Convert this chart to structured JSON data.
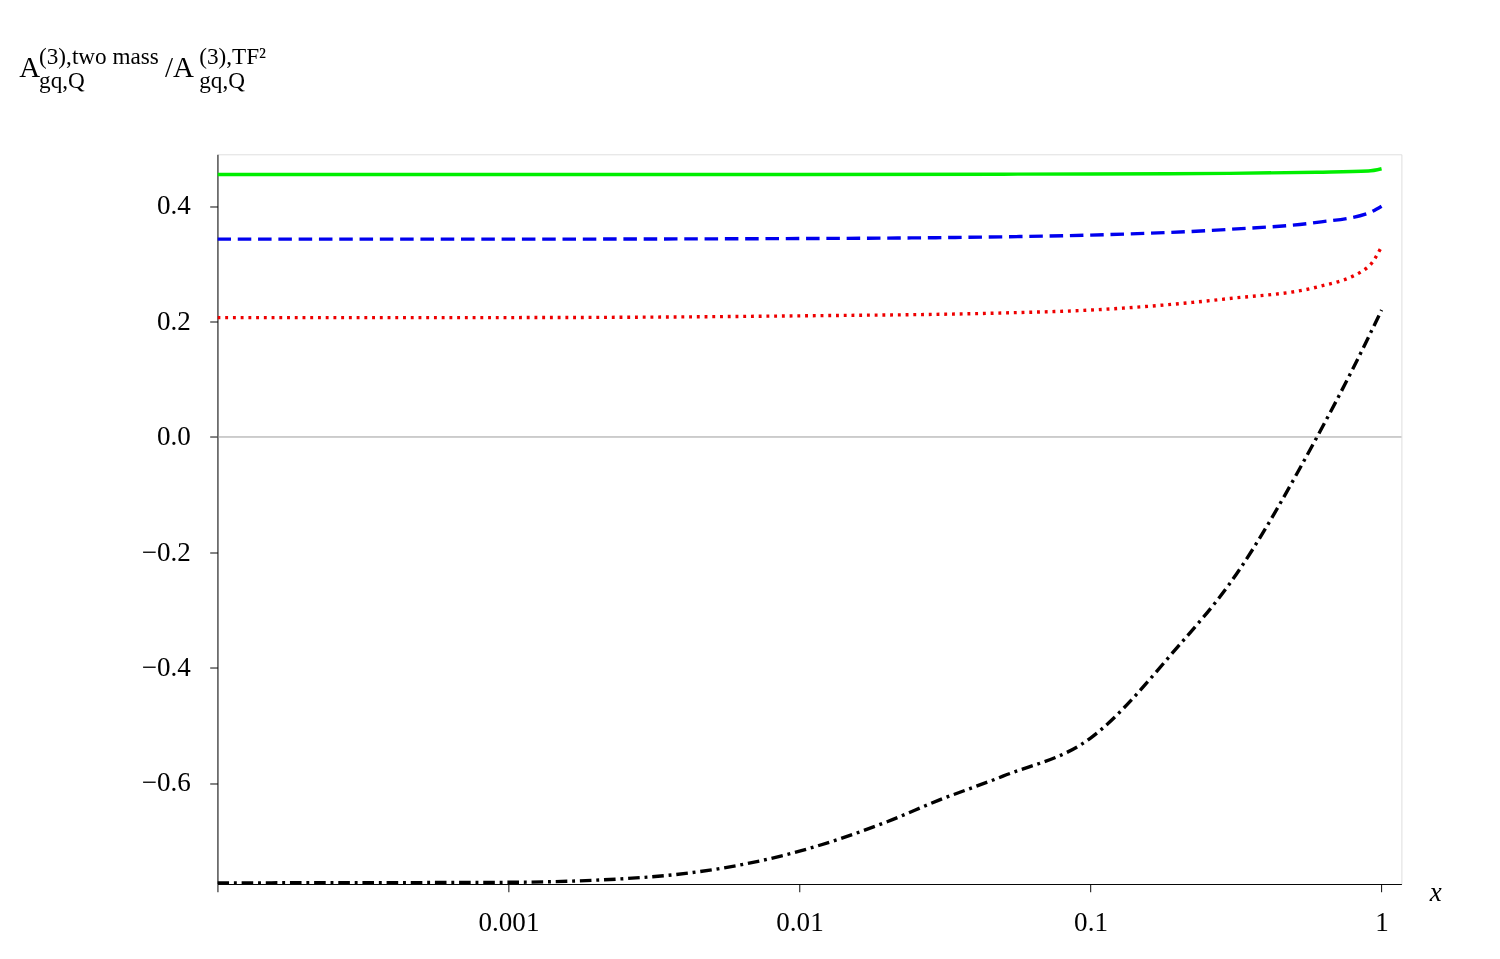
{
  "chart_data": {
    "type": "line",
    "ylabel": "A$^{(3),two mass}$$_{gq,Q}$/A$^{(3),TF²}$$_{gq,Q}$",
    "xlabel": "x",
    "log": "x",
    "xlim": [
      0.0001,
      1.17
    ],
    "xticks": [
      {
        "value": 0.0001,
        "label": null
      },
      0.001,
      0.01,
      0.1,
      1
    ],
    "ylim": [
      -0.775,
      0.49
    ],
    "yticks": [
      {
        "value": -0.6,
        "label": "−0.6"
      },
      {
        "value": -0.4,
        "label": "−0.4"
      },
      {
        "value": -0.2,
        "label": "−0.2"
      },
      {
        "value": 0,
        "label": "0.0"
      },
      {
        "value": 0.2,
        "label": "0.2"
      },
      {
        "value": 0.4,
        "label": "0.4"
      }
    ],
    "ref_lines": [
      {
        "axis": "y",
        "value": 0,
        "color": "#999999"
      }
    ],
    "grid": false,
    "series": [
      {
        "color": "#00ee00",
        "line_style": "solid",
        "x": [
          0.0001,
          0.001,
          0.01,
          0.1,
          0.3,
          0.6,
          0.9,
          1
        ],
        "values": [
          0.455,
          0.455,
          0.455,
          0.456,
          0.457,
          0.459,
          0.461,
          0.465
        ]
      },
      {
        "color": "#0000ee",
        "line_style": "dashed",
        "x": [
          0.0001,
          0.001,
          0.01,
          0.05,
          0.1,
          0.3,
          0.6,
          0.9,
          1
        ],
        "values": [
          0.343,
          0.343,
          0.344,
          0.347,
          0.35,
          0.36,
          0.372,
          0.388,
          0.4
        ]
      },
      {
        "color": "#ee0000",
        "line_style": "dotted",
        "x": [
          0.0001,
          0.001,
          0.01,
          0.05,
          0.1,
          0.3,
          0.6,
          0.9,
          1
        ],
        "values": [
          0.207,
          0.207,
          0.21,
          0.215,
          0.22,
          0.24,
          0.26,
          0.295,
          0.33
        ]
      },
      {
        "color": "#000000",
        "line_style": "dashdot",
        "x": [
          0.0001,
          0.001,
          0.003,
          0.01,
          0.02,
          0.03,
          0.05,
          0.1,
          0.2,
          0.3,
          0.6,
          0.8,
          1
        ],
        "values": [
          -0.773,
          -0.772,
          -0.763,
          -0.718,
          -0.667,
          -0.63,
          -0.588,
          -0.522,
          -0.363,
          -0.255,
          0.0,
          0.12,
          0.22
        ]
      }
    ]
  }
}
